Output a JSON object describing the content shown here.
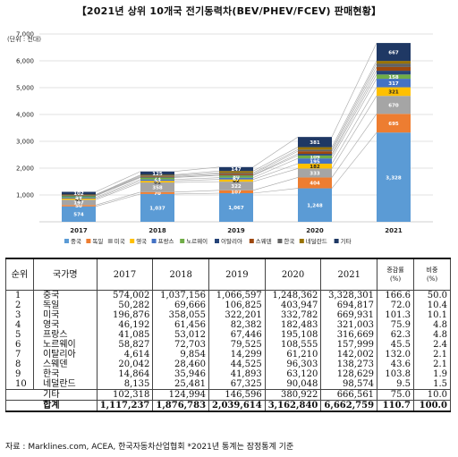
{
  "title": "【2021년 상위 10개국 전기동력차(BEV/PHEV/FCEV) 판매현황】",
  "unit_label": "(단위 : 천대)",
  "chart_data": {
    "type": "bar",
    "stacked": true,
    "categories": [
      "2017",
      "2018",
      "2019",
      "2020",
      "2021"
    ],
    "ylim": [
      0,
      7000
    ],
    "yticks": [
      1000,
      2000,
      3000,
      4000,
      5000,
      6000,
      7000
    ],
    "ytick_labels": [
      "1,000",
      "2,000",
      "3,000",
      "4,000",
      "5,000",
      "6,000",
      "7,000"
    ],
    "legend_position": "bottom",
    "series": [
      {
        "name": "중국",
        "color": "#5b9bd5",
        "values": [
          574,
          1037,
          1067,
          1248,
          3328
        ],
        "labels": [
          "574",
          "1,037",
          "1,067",
          "1,248",
          "3,328"
        ]
      },
      {
        "name": "독일",
        "color": "#ed7d31",
        "values": [
          50,
          70,
          107,
          404,
          695
        ],
        "labels": [
          "50",
          "70",
          "107",
          "404",
          "695"
        ]
      },
      {
        "name": "미국",
        "color": "#a5a5a5",
        "values": [
          197,
          358,
          322,
          333,
          670
        ],
        "labels": [
          "197",
          "358",
          "322",
          "333",
          "670"
        ]
      },
      {
        "name": "영국",
        "color": "#ffc000",
        "values": [
          46,
          61,
          82,
          182,
          321
        ],
        "labels": [
          "46",
          "61",
          "82",
          "182",
          "321"
        ]
      },
      {
        "name": "프랑스",
        "color": "#4472c4",
        "values": [
          41,
          53,
          67,
          195,
          317
        ],
        "labels": [
          "41",
          "53",
          "67",
          "195",
          "317"
        ]
      },
      {
        "name": "노르웨이",
        "color": "#70ad47",
        "values": [
          59,
          73,
          80,
          109,
          158
        ],
        "labels": [
          "59",
          "73",
          "80",
          "109",
          "158"
        ]
      },
      {
        "name": "이탈리아",
        "color": "#264478",
        "values": [
          5,
          10,
          14,
          61,
          142
        ],
        "labels": [
          "",
          "",
          "",
          "",
          ""
        ]
      },
      {
        "name": "스웨덴",
        "color": "#9e480e",
        "values": [
          20,
          28,
          45,
          96,
          138
        ],
        "labels": [
          "",
          "",
          "",
          "",
          ""
        ]
      },
      {
        "name": "한국",
        "color": "#636363",
        "values": [
          15,
          36,
          42,
          63,
          129
        ],
        "labels": [
          "",
          "",
          "",
          "",
          ""
        ]
      },
      {
        "name": "네덜란드",
        "color": "#997300",
        "values": [
          8,
          25,
          67,
          90,
          99
        ],
        "labels": [
          "",
          "",
          "",
          "",
          ""
        ]
      },
      {
        "name": "기타",
        "color": "#1f3864",
        "values": [
          102,
          125,
          147,
          381,
          667
        ],
        "labels": [
          "102",
          "125",
          "147",
          "381",
          "667"
        ]
      }
    ]
  },
  "table": {
    "headers": [
      "순위",
      "국가명",
      "2017",
      "2018",
      "2019",
      "2020",
      "2021",
      "증감률\n(%)",
      "비중\n(%)"
    ],
    "rows": [
      [
        "1",
        "중국",
        "574,002",
        "1,037,156",
        "1,066,597",
        "1,248,362",
        "3,328,301",
        "166.6",
        "50.0"
      ],
      [
        "2",
        "독일",
        "50,282",
        "69,666",
        "106,825",
        "403,947",
        "694,817",
        "72.0",
        "10.4"
      ],
      [
        "3",
        "미국",
        "196,876",
        "358,055",
        "322,201",
        "332,782",
        "669,931",
        "101.3",
        "10.1"
      ],
      [
        "4",
        "영국",
        "46,192",
        "61,456",
        "82,382",
        "182,483",
        "321,003",
        "75.9",
        "4.8"
      ],
      [
        "5",
        "프랑스",
        "41,085",
        "53,012",
        "67,446",
        "195,108",
        "316,669",
        "62.3",
        "4.8"
      ],
      [
        "6",
        "노르웨이",
        "58,827",
        "72,703",
        "79,525",
        "108,555",
        "157,999",
        "45.5",
        "2.4"
      ],
      [
        "7",
        "이탈리아",
        "4,614",
        "9,854",
        "14,299",
        "61,210",
        "142,002",
        "132.0",
        "2.1"
      ],
      [
        "8",
        "스웨덴",
        "20,042",
        "28,460",
        "44,525",
        "96,303",
        "138,273",
        "43.6",
        "2.1"
      ],
      [
        "9",
        "한국",
        "14,864",
        "35,946",
        "41,893",
        "63,120",
        "128,629",
        "103.8",
        "1.9"
      ],
      [
        "10",
        "네덜란드",
        "8,135",
        "25,481",
        "67,325",
        "90,048",
        "98,574",
        "9.5",
        "1.5"
      ]
    ],
    "other": [
      "기타",
      "102,318",
      "124,994",
      "146,596",
      "380,922",
      "666,561",
      "75.0",
      "10.0"
    ],
    "total": [
      "합계",
      "1,117,237",
      "1,876,783",
      "2,039,614",
      "3,162,840",
      "6,662,759",
      "110.7",
      "100.0"
    ]
  },
  "source": "자료 : Marklines.com, ACEA, 한국자동차산업협회 *2021년 통계는 잠정통계 기준"
}
